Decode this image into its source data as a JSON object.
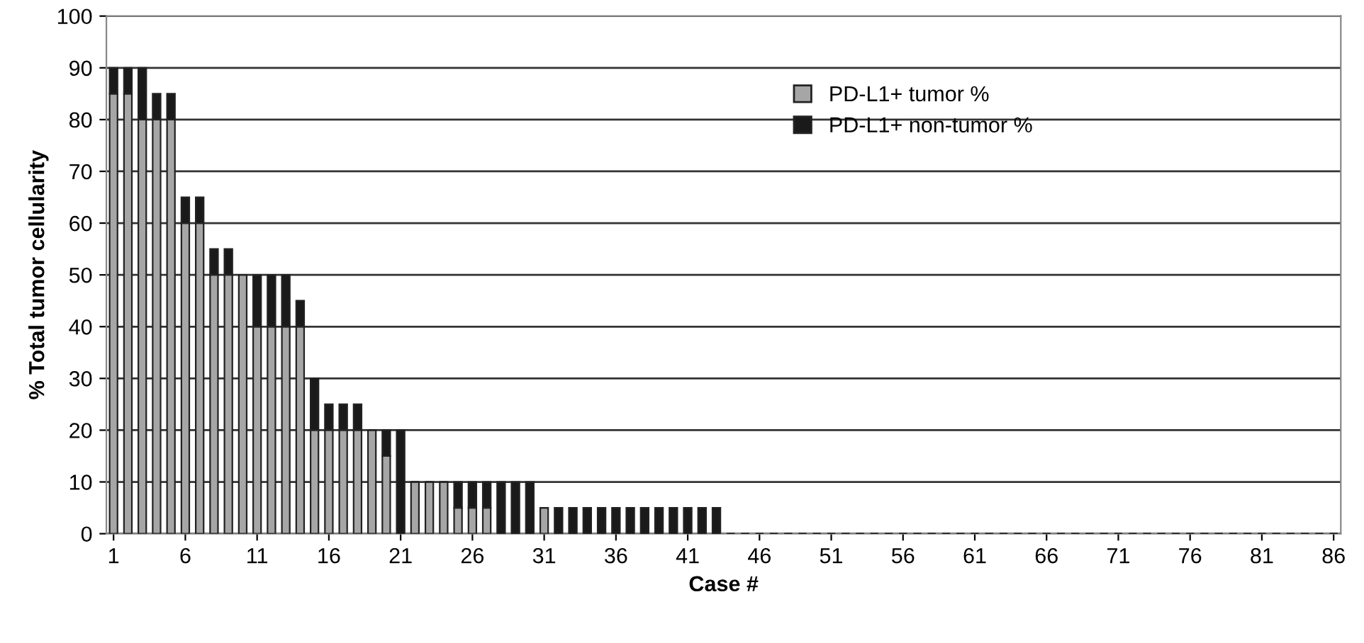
{
  "chart_data": {
    "type": "bar",
    "stacked": true,
    "xlabel": "Case #",
    "ylabel": "% Total tumor cellularity",
    "categories": [
      "1",
      null,
      null,
      null,
      null,
      "6",
      null,
      null,
      null,
      null,
      "11",
      null,
      null,
      null,
      null,
      "16",
      null,
      null,
      null,
      null,
      "21",
      null,
      null,
      null,
      null,
      "26",
      null,
      null,
      null,
      null,
      "31",
      null,
      null,
      null,
      null,
      "36",
      null,
      null,
      null,
      null,
      "41",
      null,
      null,
      null,
      null,
      "46",
      null,
      null,
      null,
      null,
      "51",
      null,
      null,
      null,
      null,
      "56",
      null,
      null,
      null,
      null,
      "61",
      null,
      null,
      null,
      null,
      "66",
      null,
      null,
      null,
      null,
      "71",
      null,
      null,
      null,
      null,
      "76",
      null,
      null,
      null,
      null,
      "81",
      null,
      null,
      null,
      null,
      "86"
    ],
    "series": [
      {
        "name": "PD-L1+ tumor %",
        "color": "#a6a6a6",
        "values": [
          85,
          85,
          80,
          80,
          80,
          60,
          60,
          50,
          50,
          50,
          40,
          40,
          40,
          40,
          20,
          20,
          20,
          20,
          20,
          15,
          0,
          10,
          10,
          10,
          5,
          5,
          5,
          0,
          0,
          0,
          5,
          0,
          0,
          0,
          0,
          0,
          0,
          0,
          0,
          0,
          0,
          0,
          0,
          0,
          0,
          0,
          0,
          0,
          0,
          0,
          0,
          0,
          0,
          0,
          0,
          0,
          0,
          0,
          0,
          0,
          0,
          0,
          0,
          0,
          0,
          0,
          0,
          0,
          0,
          0,
          0,
          0,
          0,
          0,
          0,
          0,
          0,
          0,
          0,
          0,
          0,
          0,
          0,
          0,
          0,
          0
        ]
      },
      {
        "name": "PD-L1+ non-tumor %",
        "color": "#1a1a1a",
        "values": [
          5,
          5,
          10,
          5,
          5,
          5,
          5,
          5,
          5,
          0,
          10,
          10,
          10,
          5,
          10,
          5,
          5,
          5,
          0,
          5,
          20,
          0,
          0,
          0,
          5,
          5,
          5,
          10,
          10,
          10,
          0,
          5,
          5,
          5,
          5,
          5,
          5,
          5,
          5,
          5,
          5,
          5,
          5,
          0,
          0,
          0,
          0,
          0,
          0,
          0,
          0,
          0,
          0,
          0,
          0,
          0,
          0,
          0,
          0,
          0,
          0,
          0,
          0,
          0,
          0,
          0,
          0,
          0,
          0,
          0,
          0,
          0,
          0,
          0,
          0,
          0,
          0,
          0,
          0,
          0,
          0,
          0,
          0,
          0,
          0,
          0
        ]
      }
    ],
    "ylim": [
      0,
      100
    ],
    "yticks": [
      0,
      10,
      20,
      30,
      40,
      50,
      60,
      70,
      80,
      90,
      100
    ],
    "grid": "y",
    "legend": "top right"
  }
}
